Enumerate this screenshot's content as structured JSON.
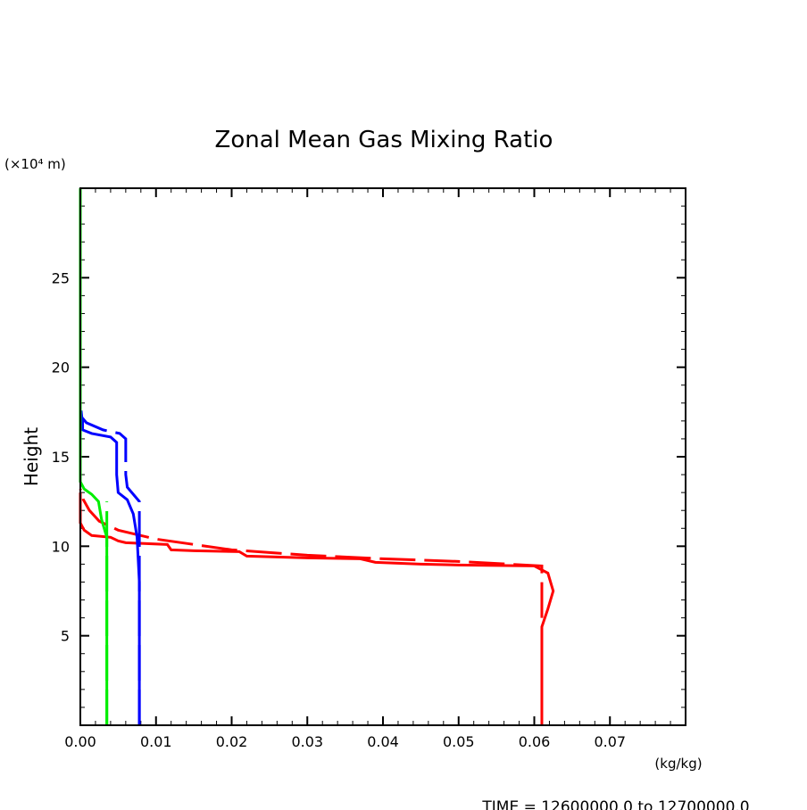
{
  "chart_data": {
    "type": "line",
    "title": "Zonal Mean Gas Mixing Ratio",
    "xlabel": "(kg/kg)",
    "ylabel": "Height",
    "yunit": "(×10⁴ m)",
    "xlim": [
      0,
      0.08
    ],
    "ylim": [
      0,
      30
    ],
    "xticks": [
      "0.00",
      "0.01",
      "0.02",
      "0.03",
      "0.04",
      "0.05",
      "0.06",
      "0.07"
    ],
    "yticks": [
      "5",
      "10",
      "15",
      "20",
      "25"
    ],
    "grid": false,
    "footer": "TIME = 12600000.0 to 12700000.0",
    "series": [
      {
        "color": "#ff0000",
        "dash": false,
        "points": [
          [
            0.061,
            0
          ],
          [
            0.061,
            5.5
          ],
          [
            0.0618,
            6.5
          ],
          [
            0.0625,
            7.5
          ],
          [
            0.0618,
            8.5
          ],
          [
            0.06,
            8.9
          ],
          [
            0.05,
            8.95
          ],
          [
            0.045,
            9.0
          ],
          [
            0.039,
            9.1
          ],
          [
            0.037,
            9.3
          ],
          [
            0.03,
            9.35
          ],
          [
            0.022,
            9.45
          ],
          [
            0.021,
            9.7
          ],
          [
            0.015,
            9.75
          ],
          [
            0.012,
            9.8
          ],
          [
            0.0115,
            10.1
          ],
          [
            0.006,
            10.2
          ],
          [
            0.005,
            10.3
          ],
          [
            0.004,
            10.5
          ],
          [
            0.0015,
            10.6
          ],
          [
            0.0005,
            10.9
          ],
          [
            0,
            11.3
          ],
          [
            0,
            13
          ]
        ]
      },
      {
        "color": "#ff0000",
        "dash": true,
        "points": [
          [
            0.061,
            6
          ],
          [
            0.061,
            8.9
          ],
          [
            0.05,
            9.15
          ],
          [
            0.04,
            9.3
          ],
          [
            0.03,
            9.5
          ],
          [
            0.02,
            9.8
          ],
          [
            0.01,
            10.4
          ],
          [
            0.005,
            10.9
          ],
          [
            0.0025,
            11.4
          ],
          [
            0.0012,
            12
          ],
          [
            0.0004,
            12.6
          ],
          [
            0,
            13.2
          ]
        ]
      },
      {
        "color": "#0000ff",
        "dash": false,
        "points": [
          [
            0.0078,
            0
          ],
          [
            0.0078,
            8
          ],
          [
            0.0075,
            10.5
          ],
          [
            0.007,
            11.8
          ],
          [
            0.0062,
            12.6
          ],
          [
            0.005,
            13
          ],
          [
            0.0048,
            14
          ],
          [
            0.0048,
            15.8
          ],
          [
            0.004,
            16.1
          ],
          [
            0.0015,
            16.3
          ],
          [
            0.0003,
            16.5
          ],
          [
            0.0003,
            17
          ],
          [
            0,
            17.5
          ]
        ]
      },
      {
        "color": "#0000ff",
        "dash": true,
        "points": [
          [
            0.0078,
            0
          ],
          [
            0.0078,
            12.5
          ],
          [
            0.0072,
            12.8
          ],
          [
            0.0062,
            13.3
          ],
          [
            0.006,
            14
          ],
          [
            0.006,
            16
          ],
          [
            0.0052,
            16.3
          ],
          [
            0.003,
            16.5
          ],
          [
            0.0008,
            16.9
          ],
          [
            0.0002,
            17.2
          ],
          [
            0,
            18
          ]
        ]
      },
      {
        "color": "#00ee00",
        "dash": false,
        "points": [
          [
            0.0035,
            0
          ],
          [
            0.0035,
            10.5
          ],
          [
            0.0028,
            11.5
          ],
          [
            0.0024,
            12.5
          ],
          [
            0.0015,
            12.9
          ],
          [
            0.0005,
            13.2
          ],
          [
            0,
            13.6
          ],
          [
            0,
            30
          ]
        ]
      },
      {
        "color": "#00ee00",
        "dash": true,
        "points": [
          [
            0.0035,
            0
          ],
          [
            0.0035,
            12.5
          ]
        ]
      }
    ]
  }
}
